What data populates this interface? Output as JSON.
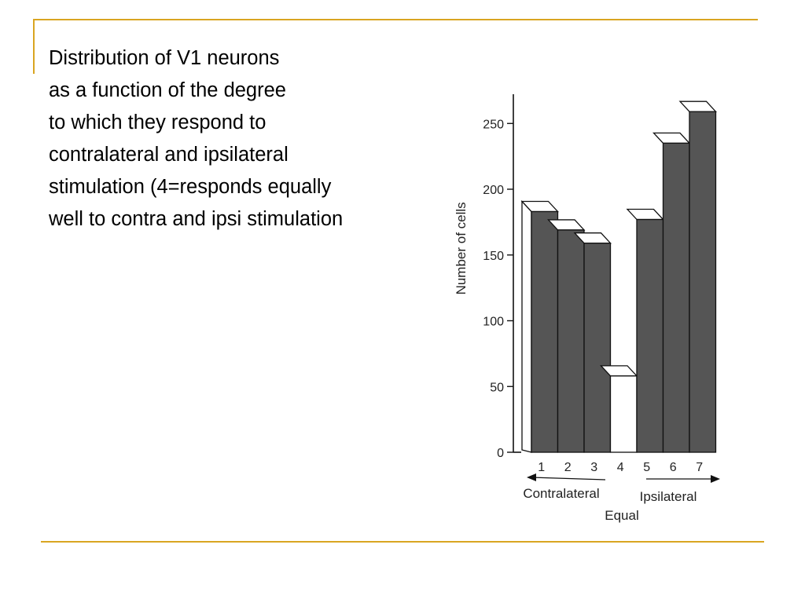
{
  "caption": {
    "lines": [
      "Distribution of V1 neurons",
      "as a function of the degree",
      "to which they respond to",
      "contralateral and ipsilateral",
      "stimulation (4=responds equally",
      "well to contra and ipsi stimulation"
    ]
  },
  "colors": {
    "rule": "#d9a521",
    "bar_fill": "#555555",
    "empty_bar_fill": "#ffffff",
    "stroke": "#111111"
  },
  "chart_data": {
    "type": "bar",
    "categories": [
      "1",
      "2",
      "3",
      "4",
      "5",
      "6",
      "7"
    ],
    "values": [
      183,
      169,
      159,
      58,
      177,
      235,
      259
    ],
    "ylabel": "Number of cells",
    "yticks": [
      0,
      50,
      100,
      150,
      200,
      250
    ],
    "ylim": [
      0,
      260
    ],
    "annotations": {
      "left_arrow": "Contralateral",
      "right_arrow": "Ipsilateral",
      "center": "Equal"
    },
    "grid": false
  }
}
